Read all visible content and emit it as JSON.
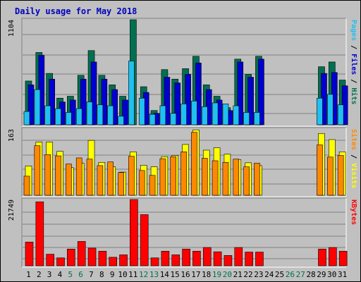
{
  "chart_data": {
    "type": "bar",
    "title": "Daily usage for May 2018",
    "categories": [
      "1",
      "2",
      "3",
      "4",
      "5",
      "6",
      "7",
      "8",
      "9",
      "10",
      "11",
      "12",
      "13",
      "14",
      "15",
      "16",
      "17",
      "18",
      "19",
      "20",
      "21",
      "22",
      "23",
      "24",
      "25",
      "26",
      "27",
      "28",
      "29",
      "30",
      "31"
    ],
    "weekend_days": [
      "5",
      "6",
      "12",
      "13",
      "19",
      "20",
      "26",
      "27"
    ],
    "colors": {
      "background": "#c0c0c0",
      "title": "#0000c0",
      "hits": "#007050",
      "files": "#0000d0",
      "pages": "#20c0f0",
      "visits": "#ffff00",
      "sites": "#ff8800",
      "kbytes": "#ff0000",
      "weekend": "#007050",
      "weekday": "#000000"
    },
    "panels": [
      {
        "id": "requests",
        "max_label": "1104",
        "ymax": 1104,
        "legend": [
          "Pages",
          "Files",
          "Hits"
        ],
        "series": [
          {
            "name": "Hits",
            "color": "#007050",
            "values": [
              460,
              760,
              540,
              280,
              300,
              520,
              780,
              520,
              420,
              300,
              1104,
              400,
              150,
              580,
              480,
              590,
              720,
              420,
              300,
              180,
              690,
              530,
              720,
              null,
              null,
              null,
              null,
              null,
              610,
              660,
              470
            ]
          },
          {
            "name": "Files",
            "color": "#0000d0",
            "values": [
              420,
              730,
              480,
              240,
              260,
              480,
              660,
              480,
              370,
              260,
              null,
              340,
              120,
              500,
              440,
              530,
              650,
              370,
              260,
              150,
              660,
              500,
              690,
              null,
              null,
              null,
              null,
              null,
              540,
              550,
              410
            ]
          },
          {
            "name": "Pages",
            "color": "#20c0f0",
            "values": [
              140,
              370,
              200,
              170,
              130,
              170,
              240,
              210,
              200,
              90,
              670,
              280,
              110,
              200,
              120,
              220,
              250,
              190,
              230,
              220,
              200,
              130,
              130,
              null,
              null,
              null,
              null,
              null,
              280,
              320,
              210
            ]
          }
        ]
      },
      {
        "id": "visitors",
        "max_label": "163",
        "ymax": 163,
        "legend": [
          "Sites",
          "Visits"
        ],
        "series": [
          {
            "name": "Visits",
            "color": "#ffff00",
            "values": [
              72,
              131,
              131,
              108,
              68,
              79,
              135,
              81,
              70,
              57,
              107,
              74,
              70,
              95,
              98,
              125,
              161,
              111,
              117,
              101,
              88,
              80,
              73,
              null,
              null,
              null,
              null,
              null,
              152,
              137,
              107
            ]
          },
          {
            "name": "Sites",
            "color": "#ff8800",
            "values": [
              47,
              122,
              100,
              97,
              77,
              92,
              89,
              73,
              82,
              56,
              96,
              61,
              49,
              90,
              95,
              107,
              155,
              91,
              85,
              81,
              89,
              70,
              79,
              null,
              null,
              null,
              null,
              null,
              124,
              94,
              98
            ]
          }
        ]
      },
      {
        "id": "kbytes",
        "max_label": "21749",
        "ymax": 21749,
        "legend": [
          "KBytes"
        ],
        "series": [
          {
            "name": "KBytes",
            "color": "#ff0000",
            "values": [
              7800,
              21000,
              3800,
              2600,
              5500,
              8000,
              5800,
              4800,
              2800,
              3600,
              21749,
              16800,
              2600,
              4800,
              3600,
              5500,
              4800,
              6000,
              4600,
              3400,
              6000,
              4500,
              4500,
              null,
              null,
              null,
              null,
              null,
              5500,
              6000,
              4800
            ]
          }
        ]
      }
    ]
  }
}
